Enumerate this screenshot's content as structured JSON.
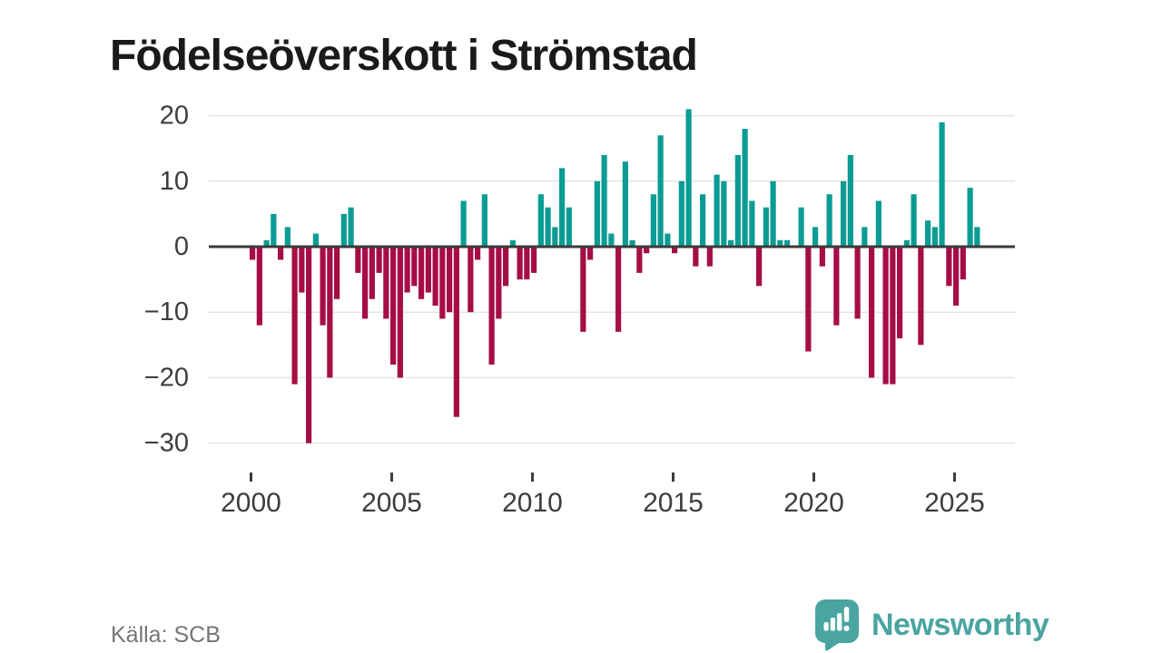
{
  "header": {
    "title": "Födelseöverskott i Strömstad"
  },
  "footer": {
    "source": "Källa: SCB",
    "brand": "Newsworthy"
  },
  "colors": {
    "title": "#1a1a1a",
    "axis_line": "#3a3a3a",
    "axis_text": "#3d3d3d",
    "gridline": "#e4e4e4",
    "source_text": "#757575",
    "logo_teal": "#4aa5a1"
  },
  "chart_data": {
    "type": "bar",
    "title": "Födelseöverskott i Strömstad",
    "xlabel": "",
    "ylabel": "",
    "grid": true,
    "legend": false,
    "ylim": [
      -31,
      22
    ],
    "y_ticks": [
      20,
      10,
      0,
      -10,
      -20,
      -30
    ],
    "x_tick_years": [
      2000,
      2005,
      2010,
      2015,
      2020,
      2025
    ],
    "positive_color": "#0a9c94",
    "negative_color": "#a60d45",
    "x": [
      "2000Q1",
      "2000Q2",
      "2000Q3",
      "2000Q4",
      "2001Q1",
      "2001Q2",
      "2001Q3",
      "2001Q4",
      "2002Q1",
      "2002Q2",
      "2002Q3",
      "2002Q4",
      "2003Q1",
      "2003Q2",
      "2003Q3",
      "2003Q4",
      "2004Q1",
      "2004Q2",
      "2004Q3",
      "2004Q4",
      "2005Q1",
      "2005Q2",
      "2005Q3",
      "2005Q4",
      "2006Q1",
      "2006Q2",
      "2006Q3",
      "2006Q4",
      "2007Q1",
      "2007Q2",
      "2007Q3",
      "2007Q4",
      "2008Q1",
      "2008Q2",
      "2008Q3",
      "2008Q4",
      "2009Q1",
      "2009Q2",
      "2009Q3",
      "2009Q4",
      "2010Q1",
      "2010Q2",
      "2010Q3",
      "2010Q4",
      "2011Q1",
      "2011Q2",
      "2011Q3",
      "2011Q4",
      "2012Q1",
      "2012Q2",
      "2012Q3",
      "2012Q4",
      "2013Q1",
      "2013Q2",
      "2013Q3",
      "2013Q4",
      "2014Q1",
      "2014Q2",
      "2014Q3",
      "2014Q4",
      "2015Q1",
      "2015Q2",
      "2015Q3",
      "2015Q4",
      "2016Q1",
      "2016Q2",
      "2016Q3",
      "2016Q4",
      "2017Q1",
      "2017Q2",
      "2017Q3",
      "2017Q4",
      "2018Q1",
      "2018Q2",
      "2018Q3",
      "2018Q4",
      "2019Q1",
      "2019Q2",
      "2019Q3",
      "2019Q4",
      "2020Q1",
      "2020Q2",
      "2020Q3",
      "2020Q4",
      "2021Q1",
      "2021Q2",
      "2021Q3",
      "2021Q4",
      "2022Q1",
      "2022Q2",
      "2022Q3",
      "2022Q4",
      "2023Q1",
      "2023Q2",
      "2023Q3",
      "2023Q4",
      "2024Q1",
      "2024Q2",
      "2024Q3",
      "2024Q4",
      "2025Q1",
      "2025Q2",
      "2025Q3",
      "2025Q4"
    ],
    "values": [
      -2,
      -12,
      1,
      5,
      -2,
      3,
      -21,
      -7,
      -30,
      2,
      -12,
      -20,
      -8,
      5,
      6,
      -4,
      -11,
      -8,
      -4,
      -11,
      -18,
      -20,
      -7,
      -6,
      -8,
      -7,
      -9,
      -11,
      -10,
      -26,
      7,
      -10,
      -2,
      8,
      -18,
      -11,
      -6,
      1,
      -5,
      -5,
      -4,
      8,
      6,
      3,
      12,
      6,
      0,
      -13,
      -2,
      10,
      14,
      2,
      -13,
      13,
      1,
      -4,
      -1,
      8,
      17,
      2,
      -1,
      10,
      21,
      -3,
      8,
      -3,
      11,
      10,
      1,
      14,
      18,
      7,
      -6,
      6,
      10,
      1,
      1,
      0,
      6,
      -16,
      3,
      -3,
      8,
      -12,
      10,
      14,
      -11,
      3,
      -20,
      7,
      -21,
      -21,
      -14,
      1,
      8,
      -15,
      4,
      3,
      19,
      -6,
      -9,
      -5,
      9,
      3
    ]
  }
}
